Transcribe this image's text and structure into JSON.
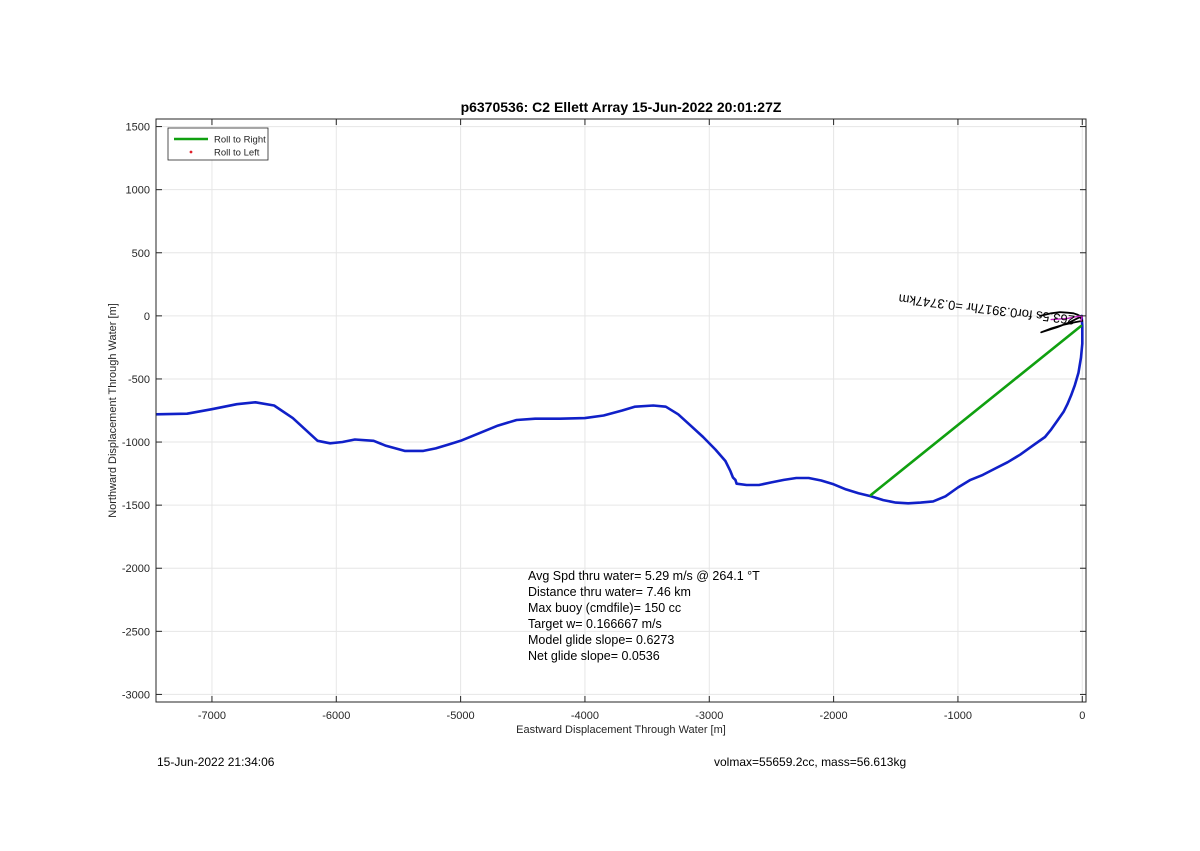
{
  "chart_data": {
    "type": "line",
    "title": "p6370536: C2 Ellett Array 15-Jun-2022 20:01:27Z",
    "xlabel": "Eastward Displacement Through Water [m]",
    "ylabel": "Northward Displacement Through Water [m]",
    "xlim": [
      -7450,
      30
    ],
    "ylim": [
      -3060,
      1560
    ],
    "xticks": [
      -7000,
      -6000,
      -5000,
      -4000,
      -3000,
      -2000,
      -1000,
      0
    ],
    "yticks": [
      -3000,
      -2500,
      -2000,
      -1500,
      -1000,
      -500,
      0,
      500,
      1000,
      1500
    ],
    "grid": true,
    "legend_position": "top-left",
    "legend": [
      {
        "label": "Roll to Right",
        "color": "#10a010",
        "style": "line"
      },
      {
        "label": "Roll to Left",
        "color": "#e0202a",
        "style": "dot"
      }
    ],
    "series": [
      {
        "color": "#1020c8",
        "x": [
          -7450,
          -7200,
          -7000,
          -6800,
          -6650,
          -6500,
          -6350,
          -6250,
          -6150,
          -6050,
          -5950,
          -5850,
          -5700,
          -5600,
          -5450,
          -5300,
          -5200,
          -5100,
          -5000,
          -4850,
          -4700,
          -4550,
          -4400,
          -4200,
          -4000,
          -3850,
          -3700,
          -3600,
          -3450,
          -3350,
          -3250,
          -3150,
          -3050,
          -2950,
          -2870,
          -2830,
          -2810,
          -2790,
          -2780,
          -2700,
          -2600,
          -2500,
          -2400,
          -2300,
          -2200,
          -2100,
          -2000,
          -1900,
          -1800,
          -1700,
          -1600,
          -1500,
          -1400,
          -1300,
          -1200,
          -1100,
          -1000,
          -900,
          -800,
          -700,
          -600,
          -500,
          -400,
          -300,
          -250,
          -200,
          -150,
          -120,
          -90,
          -60,
          -30,
          -10,
          0,
          0,
          -5
        ],
        "y": [
          -780,
          -775,
          -740,
          -700,
          -685,
          -710,
          -810,
          -900,
          -990,
          -1010,
          -1000,
          -980,
          -990,
          -1030,
          -1070,
          -1070,
          -1050,
          -1020,
          -990,
          -930,
          -870,
          -825,
          -815,
          -815,
          -810,
          -790,
          -750,
          -720,
          -710,
          -720,
          -780,
          -870,
          -960,
          -1060,
          -1150,
          -1230,
          -1280,
          -1300,
          -1330,
          -1340,
          -1340,
          -1320,
          -1300,
          -1285,
          -1285,
          -1305,
          -1335,
          -1375,
          -1405,
          -1430,
          -1460,
          -1480,
          -1485,
          -1480,
          -1470,
          -1430,
          -1360,
          -1300,
          -1260,
          -1210,
          -1160,
          -1100,
          -1030,
          -960,
          -900,
          -830,
          -760,
          -700,
          -630,
          -550,
          -450,
          -330,
          -220,
          -80,
          0
        ]
      },
      {
        "color": "#10a010",
        "x": [
          -1700,
          -10
        ],
        "y": [
          -1420,
          -80
        ]
      },
      {
        "color": "#000000",
        "x": [
          -340,
          -250,
          -180,
          -120,
          -70,
          -40,
          -20,
          -10,
          0,
          -60,
          -150,
          -250,
          -330,
          -200,
          -100,
          -30,
          0
        ],
        "y": [
          0,
          20,
          30,
          25,
          20,
          10,
          0,
          -20,
          -40,
          -50,
          -70,
          -100,
          -130,
          -90,
          -50,
          -15,
          0
        ]
      },
      {
        "color": "#c020c0",
        "x": [
          -250,
          -120,
          -40,
          0,
          -10
        ],
        "y": [
          -30,
          -20,
          -5,
          0,
          -40
        ]
      }
    ],
    "rotated_annotation": "263.5s for0.3917hr =0.3747km",
    "annotation_lines": [
      "Avg Spd thru water=  5.29 m/s @ 264.1 °T",
      "Distance thru water=  7.46 km",
      "Max buoy (cmdfile)= 150 cc",
      "Target w= 0.166667 m/s",
      "Model glide slope= 0.6273",
      "Net glide slope= 0.0536"
    ]
  },
  "footer": {
    "timestamp": "15-Jun-2022 21:34:06",
    "vol_mass": "volmax=55659.2cc, mass=56.613kg"
  }
}
